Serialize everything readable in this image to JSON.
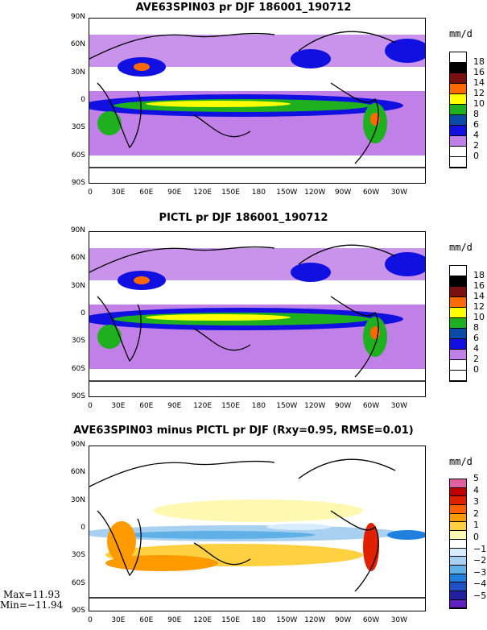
{
  "panels": [
    {
      "title": "AVE63SPIN03 pr DJF 186001_190712",
      "unit": "mm/d",
      "levels": [
        "18",
        "16",
        "14",
        "12",
        "10",
        "8",
        "6",
        "4",
        "2",
        "0"
      ],
      "colors": [
        "#ffffff",
        "#000000",
        "#7a1010",
        "#ff6a00",
        "#ffff00",
        "#1eb01e",
        "#0a4aa8",
        "#1010e0",
        "#c080e8",
        "#ffffff",
        "#ffffff"
      ]
    },
    {
      "title": "PICTL pr DJF 186001_190712",
      "unit": "mm/d",
      "levels": [
        "18",
        "16",
        "14",
        "12",
        "10",
        "8",
        "6",
        "4",
        "2",
        "0"
      ],
      "colors": [
        "#ffffff",
        "#000000",
        "#7a1010",
        "#ff6a00",
        "#ffff00",
        "#1eb01e",
        "#0a4aa8",
        "#1010e0",
        "#c080e8",
        "#ffffff",
        "#ffffff"
      ]
    },
    {
      "title": "AVE63SPIN03 minus PICTL pr DJF (Rxy=0.95, RMSE=0.01)",
      "unit": "mm/d",
      "levels": [
        "5",
        "4",
        "3",
        "2",
        "1",
        "0",
        "−1",
        "−2",
        "−3",
        "−4",
        "−5"
      ],
      "colors": [
        "#e060a0",
        "#c00000",
        "#e02000",
        "#ff6000",
        "#ff9a00",
        "#ffd040",
        "#fff8b0",
        "#ffffff",
        "#d8ecff",
        "#a8d0f0",
        "#60b0e8",
        "#2080e0",
        "#2050c8",
        "#2020a0",
        "#6020c0"
      ]
    }
  ],
  "lat_labels": [
    "90N",
    "60N",
    "30N",
    "0",
    "30S",
    "60S",
    "90S"
  ],
  "lon_labels": [
    "0",
    "30E",
    "60E",
    "90E",
    "120E",
    "150E",
    "180",
    "150W",
    "120W",
    "90W",
    "60W",
    "30W"
  ],
  "stats": {
    "max": "Max=11.93",
    "min": "Min=−11.94"
  }
}
